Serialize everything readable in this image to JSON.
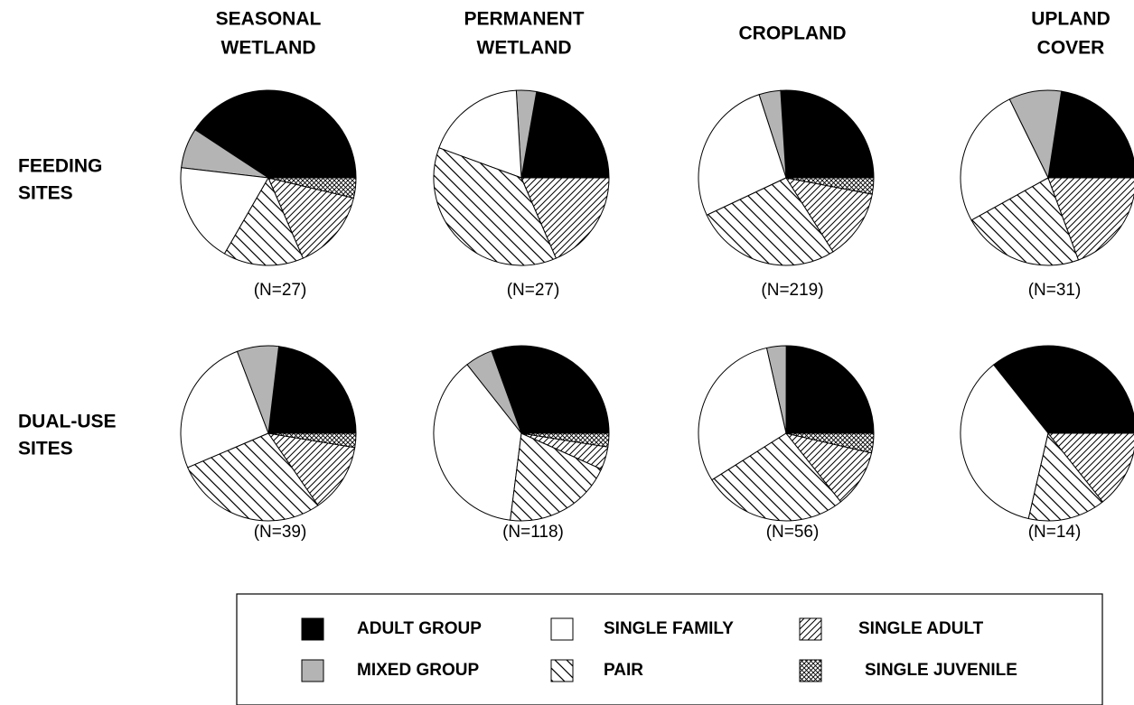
{
  "chart_data": {
    "type": "pie",
    "columns": [
      [
        "SEASONAL",
        "WETLAND"
      ],
      [
        "PERMANENT",
        "WETLAND"
      ],
      [
        "CROPLAND"
      ],
      [
        "UPLAND",
        "COVER"
      ]
    ],
    "categories": [
      {
        "name": "ADULT GROUP",
        "fill": "#000000"
      },
      {
        "name": "MIXED GROUP",
        "fill": "#b4b4b4"
      },
      {
        "name": "SINGLE FAMILY",
        "fill": "#ffffff"
      },
      {
        "name": "PAIR",
        "pattern": "back-diagonal"
      },
      {
        "name": "SINGLE ADULT",
        "pattern": "diagonal"
      },
      {
        "name": "SINGLE JUVENILE",
        "pattern": "crosshatch"
      }
    ],
    "rows": [
      {
        "label": [
          "FEEDING",
          "SITES"
        ],
        "pies": [
          {
            "n_label": "(N=27)",
            "values": [
              40.7,
              7.4,
              18.5,
              14.8,
              14.8,
              3.7
            ]
          },
          {
            "n_label": "(N=27)",
            "values": [
              22.2,
              3.7,
              18.5,
              37,
              18.5,
              0
            ]
          },
          {
            "n_label": "(N=219)",
            "values": [
              26,
              4,
              27,
              27,
              13,
              3
            ]
          },
          {
            "n_label": "(N=31)",
            "values": [
              22.6,
              9.7,
              25.8,
              22.6,
              19.4,
              0
            ]
          }
        ]
      },
      {
        "label": [
          "DUAL-USE",
          "SITES"
        ],
        "pies": [
          {
            "n_label": "(N=39)",
            "values": [
              23.1,
              7.7,
              25.6,
              28.2,
              12.8,
              2.6
            ]
          },
          {
            "n_label": "(N=118)",
            "values": [
              30.5,
              5.1,
              37.3,
              20.3,
              4.2,
              2.5
            ]
          },
          {
            "n_label": "(N=56)",
            "values": [
              25,
              3.6,
              30.4,
              26.8,
              10.7,
              3.6
            ]
          },
          {
            "n_label": "(N=14)",
            "values": [
              35.7,
              0,
              35.7,
              14.3,
              14.3,
              0
            ]
          }
        ]
      }
    ]
  }
}
